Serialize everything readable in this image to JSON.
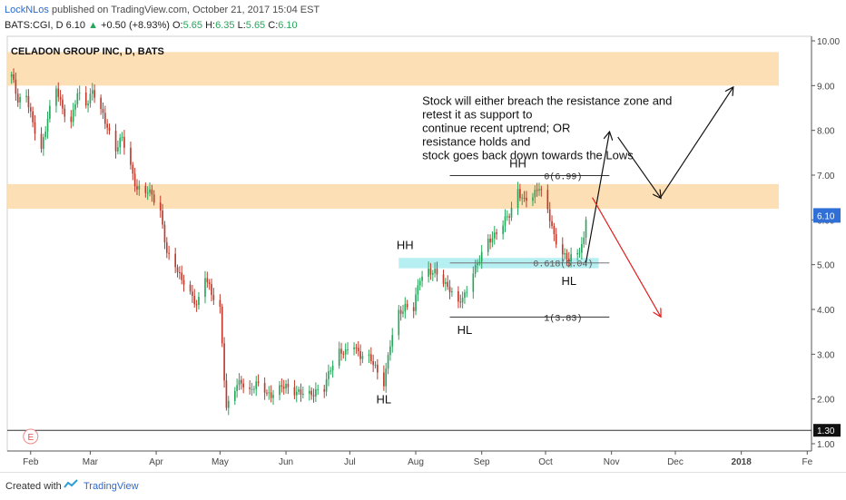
{
  "header": {
    "author": "LockNLos",
    "published_text": " published on TradingView.com, October 21, 2017 15:04 EST",
    "symbol_line": "BATS:CGI, D  6.10",
    "change": "+0.50 (+8.93%)",
    "ohlc_o_label": "O:",
    "ohlc_o": "5.65",
    "ohlc_h_label": "H:",
    "ohlc_h": "6.35",
    "ohlc_l_label": "L:",
    "ohlc_l": "5.65",
    "ohlc_c_label": "C:",
    "ohlc_c": "6.10"
  },
  "footer": {
    "created_with": "Created with",
    "brand": "TradingView"
  },
  "colors": {
    "up": "#26a65b",
    "down": "#c0392b",
    "zone": "#fbd9a8",
    "support_zone": "#a8ecef",
    "price_tag": "#2f6fd6",
    "arrow_down": "#e02020"
  },
  "chart_data": {
    "type": "candlestick",
    "title": "CELADON GROUP INC, D, BATS",
    "ylim": [
      1.0,
      10.0
    ],
    "y_ticks": [
      "1.00",
      "2.00",
      "3.00",
      "4.00",
      "5.00",
      "6.00",
      "7.00",
      "8.00",
      "9.00",
      "10.00"
    ],
    "x_ticks": [
      "Feb",
      "Mar",
      "Apr",
      "May",
      "Jun",
      "Jul",
      "Aug",
      "Sep",
      "Oct",
      "Nov",
      "Dec",
      "2018",
      "Fe"
    ],
    "x_tick_dates": [
      "2017-02-01",
      "2017-03-01",
      "2017-04-01",
      "2017-05-01",
      "2017-06-01",
      "2017-07-01",
      "2017-08-01",
      "2017-09-01",
      "2017-10-01",
      "2017-11-01",
      "2017-12-01",
      "2018-01-01",
      "2018-02-01"
    ],
    "x_range": [
      "2017-01-21",
      "2018-02-03"
    ],
    "last_price": "6.10",
    "baseline_price": "1.30",
    "closes": [
      [
        "2017-01-23",
        9.2
      ],
      [
        "2017-01-26",
        8.7
      ],
      [
        "2017-01-30",
        8.8
      ],
      [
        "2017-02-02",
        8.1
      ],
      [
        "2017-02-06",
        7.6
      ],
      [
        "2017-02-09",
        8.3
      ],
      [
        "2017-02-13",
        8.9
      ],
      [
        "2017-02-16",
        8.5
      ],
      [
        "2017-02-20",
        8.2
      ],
      [
        "2017-02-23",
        8.8
      ],
      [
        "2017-02-27",
        8.6
      ],
      [
        "2017-03-02",
        8.9
      ],
      [
        "2017-03-06",
        8.4
      ],
      [
        "2017-03-09",
        8.1
      ],
      [
        "2017-03-13",
        7.6
      ],
      [
        "2017-03-16",
        7.8
      ],
      [
        "2017-03-20",
        7.2
      ],
      [
        "2017-03-23",
        6.7
      ],
      [
        "2017-03-27",
        6.6
      ],
      [
        "2017-03-30",
        6.6
      ],
      [
        "2017-04-03",
        6.2
      ],
      [
        "2017-04-06",
        5.2
      ],
      [
        "2017-04-10",
        5.0
      ],
      [
        "2017-04-13",
        4.7
      ],
      [
        "2017-04-17",
        4.3
      ],
      [
        "2017-04-20",
        4.1
      ],
      [
        "2017-04-24",
        4.8
      ],
      [
        "2017-04-27",
        4.3
      ],
      [
        "2017-05-01",
        4.0
      ],
      [
        "2017-05-04",
        1.8
      ],
      [
        "2017-05-08",
        2.2
      ],
      [
        "2017-05-11",
        2.4
      ],
      [
        "2017-05-15",
        2.2
      ],
      [
        "2017-05-18",
        2.3
      ],
      [
        "2017-05-22",
        2.2
      ],
      [
        "2017-05-25",
        2.1
      ],
      [
        "2017-05-29",
        2.2
      ],
      [
        "2017-06-01",
        2.3
      ],
      [
        "2017-06-05",
        2.2
      ],
      [
        "2017-06-08",
        2.1
      ],
      [
        "2017-06-12",
        2.1
      ],
      [
        "2017-06-15",
        2.2
      ],
      [
        "2017-06-19",
        2.2
      ],
      [
        "2017-06-22",
        2.7
      ],
      [
        "2017-06-26",
        3.1
      ],
      [
        "2017-06-29",
        3.0
      ],
      [
        "2017-07-03",
        3.2
      ],
      [
        "2017-07-06",
        3.0
      ],
      [
        "2017-07-10",
        2.9
      ],
      [
        "2017-07-13",
        2.7
      ],
      [
        "2017-07-17",
        2.4
      ],
      [
        "2017-07-20",
        3.2
      ],
      [
        "2017-07-24",
        3.9
      ],
      [
        "2017-07-27",
        4.1
      ],
      [
        "2017-07-31",
        4.0
      ],
      [
        "2017-08-03",
        4.7
      ],
      [
        "2017-08-07",
        4.9
      ],
      [
        "2017-08-10",
        4.8
      ],
      [
        "2017-08-14",
        4.6
      ],
      [
        "2017-08-17",
        4.5
      ],
      [
        "2017-08-21",
        4.1
      ],
      [
        "2017-08-24",
        4.3
      ],
      [
        "2017-08-28",
        4.9
      ],
      [
        "2017-08-31",
        5.1
      ],
      [
        "2017-09-04",
        5.5
      ],
      [
        "2017-09-07",
        5.7
      ],
      [
        "2017-09-11",
        5.9
      ],
      [
        "2017-09-14",
        6.1
      ],
      [
        "2017-09-18",
        6.7
      ],
      [
        "2017-09-21",
        6.4
      ],
      [
        "2017-09-25",
        6.5
      ],
      [
        "2017-09-28",
        6.8
      ],
      [
        "2017-10-02",
        6.2
      ],
      [
        "2017-10-05",
        5.6
      ],
      [
        "2017-10-09",
        5.3
      ],
      [
        "2017-10-12",
        5.1
      ],
      [
        "2017-10-16",
        5.2
      ],
      [
        "2017-10-19",
        5.6
      ],
      [
        "2017-10-20",
        6.1
      ]
    ],
    "zones": [
      {
        "low": 9.0,
        "high": 9.75
      },
      {
        "low": 6.25,
        "high": 6.8
      }
    ],
    "support_zone": {
      "low": 4.92,
      "high": 5.15,
      "start": "2017-07-24",
      "end": "2017-10-26"
    },
    "fib_levels": [
      {
        "label": "0(6.99)",
        "value": 6.99,
        "start": "2017-08-17",
        "end": "2017-10-31"
      },
      {
        "label": "0.618(5.04)",
        "value": 5.04,
        "start": "2017-08-17",
        "end": "2017-10-31"
      },
      {
        "label": "1(3.83)",
        "value": 3.83,
        "start": "2017-08-17",
        "end": "2017-10-31"
      }
    ],
    "annotations": [
      {
        "text": "HH",
        "date": "2017-07-27",
        "value": 5.35
      },
      {
        "text": "HH",
        "date": "2017-09-18",
        "value": 7.17
      },
      {
        "text": "HL",
        "date": "2017-07-17",
        "value": 1.9
      },
      {
        "text": "HL",
        "date": "2017-08-24",
        "value": 3.45
      },
      {
        "text": "HL",
        "date": "2017-10-12",
        "value": 4.55
      }
    ],
    "note_lines": [
      "Stock will either breach the resistance zone and",
      "retest it as support to",
      "continue recent uptrend; OR",
      "resistance holds and",
      "stock goes back down towards the Lows"
    ],
    "note_anchor": {
      "date": "2017-08-04",
      "value": 8.85
    },
    "scenario_up": [
      [
        "2017-10-20",
        5.05
      ],
      [
        "2017-10-31",
        7.95
      ],
      [
        "2017-11-04",
        7.85
      ],
      [
        "2017-11-24",
        6.5
      ],
      [
        "2017-12-28",
        8.95
      ]
    ],
    "scenario_down": [
      [
        "2017-10-23",
        6.5
      ],
      [
        "2017-11-24",
        3.85
      ]
    ],
    "earnings_marker": {
      "text": "E",
      "date": "2017-02-01"
    }
  }
}
